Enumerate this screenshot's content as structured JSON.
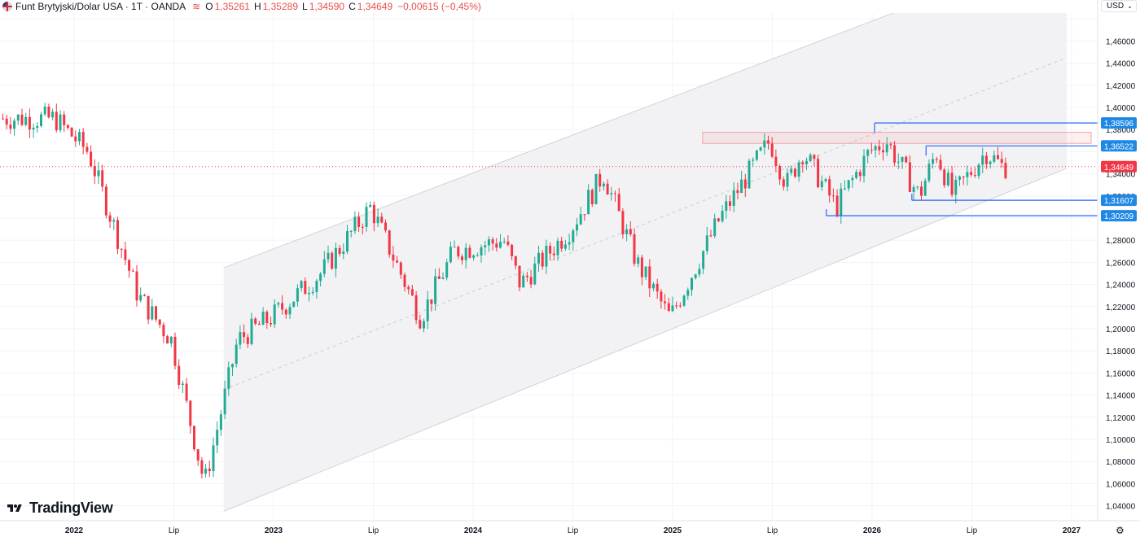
{
  "header": {
    "symbol_title": "Funt Brytyjski/Dolar USA · 1T · OANDA",
    "indicator_icon": "wave-icon",
    "open_key": "O",
    "open": "1,35261",
    "high_key": "H",
    "high": "1,35289",
    "low_key": "L",
    "low": "1,34590",
    "close_key": "C",
    "close": "1,34649",
    "change": "−0,00615 (−0,45%)"
  },
  "currency": {
    "label": "USD",
    "icon": "chevron-down-icon"
  },
  "logo": {
    "text": "TradingView",
    "icon": "tradingview-logo-icon"
  },
  "settings": {
    "icon": "gear-icon"
  },
  "colors": {
    "up": "#22ab94",
    "down": "#f23645",
    "level_line": "#2962ff",
    "price_tag": "#f23645",
    "level_tag": "#1e88e5",
    "channel_fill": "#f2f2f4"
  },
  "chart_data": {
    "type": "candlestick",
    "x_axis_labels": [
      "2022",
      "Lip",
      "2023",
      "Lip",
      "2024",
      "Lip",
      "2025",
      "Lip",
      "2026",
      "Lip",
      "2027"
    ],
    "y_axis_labels": [
      "1,46000",
      "1,44000",
      "1,42000",
      "1,40000",
      "1,38000",
      "1,34000",
      "1,32000",
      "1,28000",
      "1,26000",
      "1,24000",
      "1,22000",
      "1,20000",
      "1,18000",
      "1,16000",
      "1,14000",
      "1,12000",
      "1,10000",
      "1,08000",
      "1,06000",
      "1,04000"
    ],
    "ylim": [
      1.03,
      1.48
    ],
    "current_price": "1,34649",
    "levels": [
      {
        "label": "1,38596",
        "value": 1.38596
      },
      {
        "label": "1,36522",
        "value": 1.36522
      },
      {
        "label": "1,31607",
        "value": 1.31607
      },
      {
        "label": "1,30209",
        "value": 1.30209
      }
    ],
    "resistance_zone": [
      1.3675,
      1.3775
    ],
    "key_points": [
      {
        "date": "2021-12",
        "value": 1.39
      },
      {
        "date": "2022-02",
        "value": 1.36
      },
      {
        "date": "2022-05",
        "value": 1.23
      },
      {
        "date": "2022-07",
        "value": 1.19
      },
      {
        "date": "2022-09",
        "value": 1.06
      },
      {
        "date": "2022-11",
        "value": 1.19
      },
      {
        "date": "2023-01",
        "value": 1.21
      },
      {
        "date": "2023-04",
        "value": 1.25
      },
      {
        "date": "2023-07",
        "value": 1.31
      },
      {
        "date": "2023-10",
        "value": 1.21
      },
      {
        "date": "2023-12",
        "value": 1.27
      },
      {
        "date": "2024-03",
        "value": 1.28
      },
      {
        "date": "2024-04",
        "value": 1.24
      },
      {
        "date": "2024-07",
        "value": 1.29
      },
      {
        "date": "2024-09",
        "value": 1.34
      },
      {
        "date": "2024-11",
        "value": 1.26
      },
      {
        "date": "2025-01",
        "value": 1.21
      },
      {
        "date": "2025-04",
        "value": 1.3
      },
      {
        "date": "2025-07",
        "value": 1.37
      },
      {
        "date": "2025-08",
        "value": 1.33
      },
      {
        "date": "2025-09",
        "value": 1.36
      },
      {
        "date": "2025-11",
        "value": 1.31
      },
      {
        "date": "2026-01",
        "value": 1.36
      },
      {
        "date": "2026-02",
        "value": 1.37
      },
      {
        "date": "2026-04",
        "value": 1.32
      },
      {
        "date": "2026-05",
        "value": 1.36
      },
      {
        "date": "2026-06",
        "value": 1.32
      },
      {
        "date": "2026-08",
        "value": 1.36
      },
      {
        "date": "2026-09",
        "value": 1.34649
      }
    ]
  }
}
